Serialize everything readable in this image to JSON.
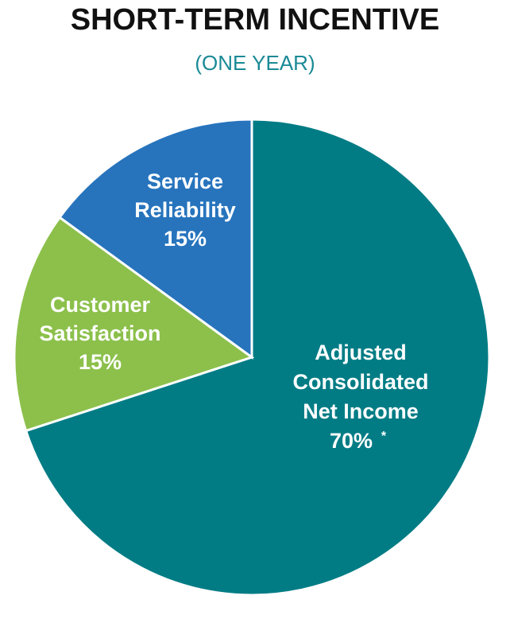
{
  "chart_data": {
    "type": "pie",
    "title": "SHORT-TERM INCENTIVE",
    "subtitle": "(ONE YEAR)",
    "slices": [
      {
        "lines": [
          "Adjusted",
          "Consolidated",
          "Net Income"
        ],
        "value_label": "70%",
        "footnote_mark": "*",
        "value": 70,
        "color": "#017c85"
      },
      {
        "lines": [
          "Customer",
          "Satisfaction"
        ],
        "value_label": "15%",
        "value": 15,
        "color": "#8cc04b"
      },
      {
        "lines": [
          "Service",
          "Reliability"
        ],
        "value_label": "15%",
        "value": 15,
        "color": "#2774bd"
      }
    ],
    "start": "12 o'clock",
    "direction": "clockwise",
    "legend": "none"
  }
}
